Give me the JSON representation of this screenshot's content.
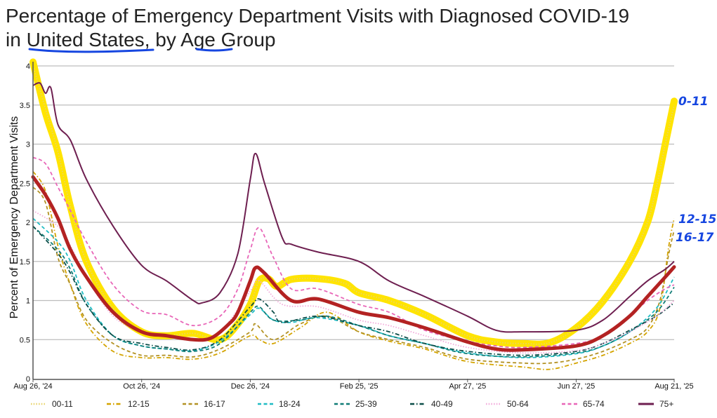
{
  "chart_data": {
    "type": "line",
    "title_line1": "Percentage of Emergency Department Visits with Diagnosed COVID-19",
    "title_line2": {
      "p1": "in ",
      "p2": "United States",
      "p3": ", by ",
      "p4": "Age",
      "p5": " Group"
    },
    "ylabel": "Percent of Emergency Department Visits",
    "xlabel": "",
    "x_unit": "days since Aug 26, 2024",
    "xlim": [
      0,
      360
    ],
    "ylim": [
      0,
      4
    ],
    "grid": true,
    "legend_placement": "bottom",
    "yticks": [
      {
        "v": 0,
        "label": "0"
      },
      {
        "v": 0.5,
        "label": "0.5"
      },
      {
        "v": 1,
        "label": "1"
      },
      {
        "v": 1.5,
        "label": "1.5"
      },
      {
        "v": 2,
        "label": "2"
      },
      {
        "v": 2.5,
        "label": "2.5"
      },
      {
        "v": 3,
        "label": "3"
      },
      {
        "v": 3.5,
        "label": "3.5"
      },
      {
        "v": 4,
        "label": "4"
      }
    ],
    "xticks": [
      {
        "v": 0,
        "label": "Aug 26, '24"
      },
      {
        "v": 61,
        "label": "Oct 26, '24"
      },
      {
        "v": 122,
        "label": "Dec 26, '24"
      },
      {
        "v": 183,
        "label": "Feb 25, '25"
      },
      {
        "v": 244,
        "label": "Apr 27, '25"
      },
      {
        "v": 305,
        "label": "Jun 27, '25"
      },
      {
        "v": 360,
        "label": "Aug 21, '25"
      }
    ],
    "highlights": [
      {
        "color": "#ffe400",
        "x": [
          0,
          7,
          14,
          21,
          30,
          45,
          61,
          75,
          90,
          105,
          115,
          122,
          127,
          132,
          137,
          145,
          160,
          175,
          183,
          200,
          220,
          244,
          260,
          275,
          290,
          305,
          320,
          335,
          345,
          350,
          355,
          360
        ],
        "y": [
          4.05,
          3.4,
          2.9,
          2.2,
          1.5,
          0.9,
          0.6,
          0.55,
          0.58,
          0.5,
          0.7,
          0.95,
          1.25,
          1.28,
          1.18,
          1.27,
          1.28,
          1.22,
          1.1,
          1.0,
          0.82,
          0.55,
          0.47,
          0.45,
          0.46,
          0.65,
          0.99,
          1.5,
          2.0,
          2.45,
          3.0,
          3.55
        ]
      },
      {
        "color": "#b32222",
        "x": [
          0,
          7,
          14,
          21,
          30,
          45,
          61,
          75,
          90,
          100,
          110,
          115,
          122,
          125,
          130,
          145,
          160,
          183,
          200,
          220,
          244,
          260,
          275,
          305,
          320,
          335,
          345,
          355,
          360
        ],
        "y": [
          2.58,
          2.35,
          2.05,
          1.65,
          1.3,
          0.85,
          0.6,
          0.55,
          0.5,
          0.52,
          0.7,
          0.85,
          1.25,
          1.42,
          1.35,
          1.0,
          1.02,
          0.85,
          0.78,
          0.65,
          0.47,
          0.38,
          0.37,
          0.42,
          0.55,
          0.8,
          1.05,
          1.3,
          1.43
        ]
      }
    ],
    "series": [
      {
        "name": "00-11",
        "color": "#e8d36a",
        "dash": "dot",
        "x": [
          0,
          7,
          14,
          21,
          30,
          45,
          61,
          75,
          90,
          105,
          115,
          122,
          127,
          132,
          137,
          145,
          160,
          175,
          183,
          200,
          220,
          244,
          260,
          275,
          290,
          305,
          320,
          335,
          345,
          350,
          355,
          360
        ],
        "y": [
          4.0,
          3.45,
          2.9,
          2.2,
          1.5,
          0.9,
          0.6,
          0.55,
          0.58,
          0.5,
          0.7,
          0.95,
          1.25,
          1.28,
          1.18,
          1.27,
          1.28,
          1.22,
          1.1,
          1.0,
          0.82,
          0.55,
          0.47,
          0.45,
          0.46,
          0.65,
          0.99,
          1.5,
          2.0,
          2.45,
          3.0,
          3.5
        ]
      },
      {
        "name": "12-15",
        "color": "#d4a400",
        "dash": "dashdot",
        "x": [
          0,
          7,
          14,
          21,
          30,
          45,
          61,
          75,
          90,
          105,
          122,
          127,
          135,
          150,
          165,
          183,
          200,
          220,
          244,
          275,
          290,
          305,
          320,
          335,
          345,
          352,
          357,
          360
        ],
        "y": [
          2.65,
          2.4,
          1.7,
          1.2,
          0.7,
          0.35,
          0.27,
          0.27,
          0.25,
          0.33,
          0.55,
          0.5,
          0.45,
          0.65,
          0.85,
          0.6,
          0.48,
          0.38,
          0.22,
          0.15,
          0.12,
          0.2,
          0.3,
          0.45,
          0.6,
          0.9,
          1.7,
          2.05
        ]
      },
      {
        "name": "16-17",
        "color": "#b39224",
        "dash": "dash",
        "x": [
          0,
          7,
          14,
          21,
          30,
          45,
          61,
          75,
          90,
          105,
          122,
          125,
          135,
          150,
          165,
          183,
          200,
          220,
          244,
          275,
          290,
          305,
          320,
          335,
          345,
          352,
          357,
          360
        ],
        "y": [
          2.45,
          2.25,
          1.55,
          1.2,
          0.75,
          0.45,
          0.3,
          0.3,
          0.28,
          0.38,
          0.6,
          0.7,
          0.5,
          0.7,
          0.8,
          0.6,
          0.5,
          0.4,
          0.25,
          0.2,
          0.2,
          0.25,
          0.35,
          0.5,
          0.65,
          1.0,
          1.6,
          1.9
        ]
      },
      {
        "name": "18-24",
        "color": "#1fbcc4",
        "dash": "dash",
        "x": [
          0,
          14,
          21,
          30,
          45,
          61,
          75,
          90,
          105,
          122,
          127,
          135,
          145,
          160,
          183,
          200,
          220,
          244,
          275,
          305,
          320,
          335,
          350,
          360
        ],
        "y": [
          2.05,
          1.75,
          1.5,
          1.0,
          0.55,
          0.42,
          0.38,
          0.36,
          0.48,
          0.82,
          0.9,
          0.75,
          0.72,
          0.78,
          0.68,
          0.55,
          0.45,
          0.33,
          0.27,
          0.32,
          0.42,
          0.6,
          0.9,
          1.3
        ]
      },
      {
        "name": "25-39",
        "color": "#0f7c76",
        "dash": "dash",
        "x": [
          0,
          14,
          21,
          30,
          45,
          61,
          75,
          90,
          105,
          122,
          127,
          135,
          150,
          165,
          183,
          200,
          220,
          244,
          275,
          305,
          320,
          335,
          350,
          360
        ],
        "y": [
          1.95,
          1.65,
          1.4,
          0.95,
          0.55,
          0.42,
          0.38,
          0.35,
          0.45,
          0.85,
          0.92,
          0.75,
          0.75,
          0.8,
          0.68,
          0.55,
          0.45,
          0.32,
          0.28,
          0.33,
          0.42,
          0.6,
          0.85,
          1.17
        ]
      },
      {
        "name": "40-49",
        "color": "#0b4d48",
        "dash": "dashdot",
        "x": [
          0,
          14,
          21,
          30,
          45,
          61,
          75,
          90,
          105,
          122,
          127,
          135,
          140,
          160,
          183,
          200,
          220,
          244,
          275,
          305,
          320,
          335,
          350,
          360
        ],
        "y": [
          1.95,
          1.6,
          1.35,
          0.95,
          0.55,
          0.45,
          0.4,
          0.37,
          0.5,
          0.92,
          1.02,
          0.85,
          0.72,
          0.8,
          0.68,
          0.6,
          0.45,
          0.35,
          0.3,
          0.35,
          0.45,
          0.62,
          0.8,
          0.97
        ]
      },
      {
        "name": "50-64",
        "color": "#f2a9da",
        "dash": "dot",
        "x": [
          0,
          14,
          21,
          30,
          45,
          61,
          75,
          90,
          105,
          122,
          127,
          140,
          160,
          183,
          200,
          220,
          244,
          275,
          305,
          320,
          335,
          350,
          360
        ],
        "y": [
          2.15,
          1.95,
          1.7,
          1.3,
          0.8,
          0.6,
          0.55,
          0.5,
          0.6,
          1.12,
          1.25,
          0.95,
          0.92,
          0.75,
          0.68,
          0.55,
          0.4,
          0.33,
          0.36,
          0.45,
          0.6,
          0.8,
          1.0
        ]
      },
      {
        "name": "65-74",
        "color": "#e866b8",
        "dash": "dash",
        "x": [
          0,
          7,
          14,
          21,
          30,
          45,
          61,
          75,
          90,
          105,
          115,
          122,
          127,
          135,
          145,
          160,
          183,
          200,
          220,
          244,
          260,
          275,
          305,
          320,
          335,
          345,
          355,
          360
        ],
        "y": [
          2.83,
          2.75,
          2.45,
          2.15,
          1.75,
          1.2,
          0.87,
          0.82,
          0.68,
          0.8,
          1.15,
          1.65,
          1.93,
          1.55,
          1.15,
          1.15,
          0.95,
          0.85,
          0.62,
          0.48,
          0.42,
          0.4,
          0.45,
          0.55,
          0.8,
          1.0,
          1.15,
          1.2
        ]
      },
      {
        "name": "75+",
        "color": "#6e1f50",
        "dash": "solid",
        "x": [
          0,
          4,
          7,
          10,
          14,
          21,
          30,
          45,
          61,
          75,
          90,
          95,
          105,
          115,
          122,
          125,
          130,
          140,
          145,
          160,
          183,
          200,
          220,
          244,
          260,
          275,
          305,
          320,
          335,
          345,
          355,
          360
        ],
        "y": [
          3.75,
          3.78,
          3.65,
          3.72,
          3.25,
          3.05,
          2.55,
          1.95,
          1.45,
          1.25,
          1.0,
          0.97,
          1.1,
          1.6,
          2.55,
          2.88,
          2.5,
          1.8,
          1.72,
          1.62,
          1.5,
          1.25,
          1.05,
          0.8,
          0.62,
          0.6,
          0.62,
          0.75,
          1.05,
          1.25,
          1.4,
          1.5
        ]
      }
    ],
    "annotations": [
      {
        "text": "0-11",
        "series": "00-11"
      },
      {
        "text": "12-15",
        "series": "12-15"
      },
      {
        "text": "16-17",
        "series": "16-17"
      }
    ],
    "annotation_color": "#1646e0"
  }
}
